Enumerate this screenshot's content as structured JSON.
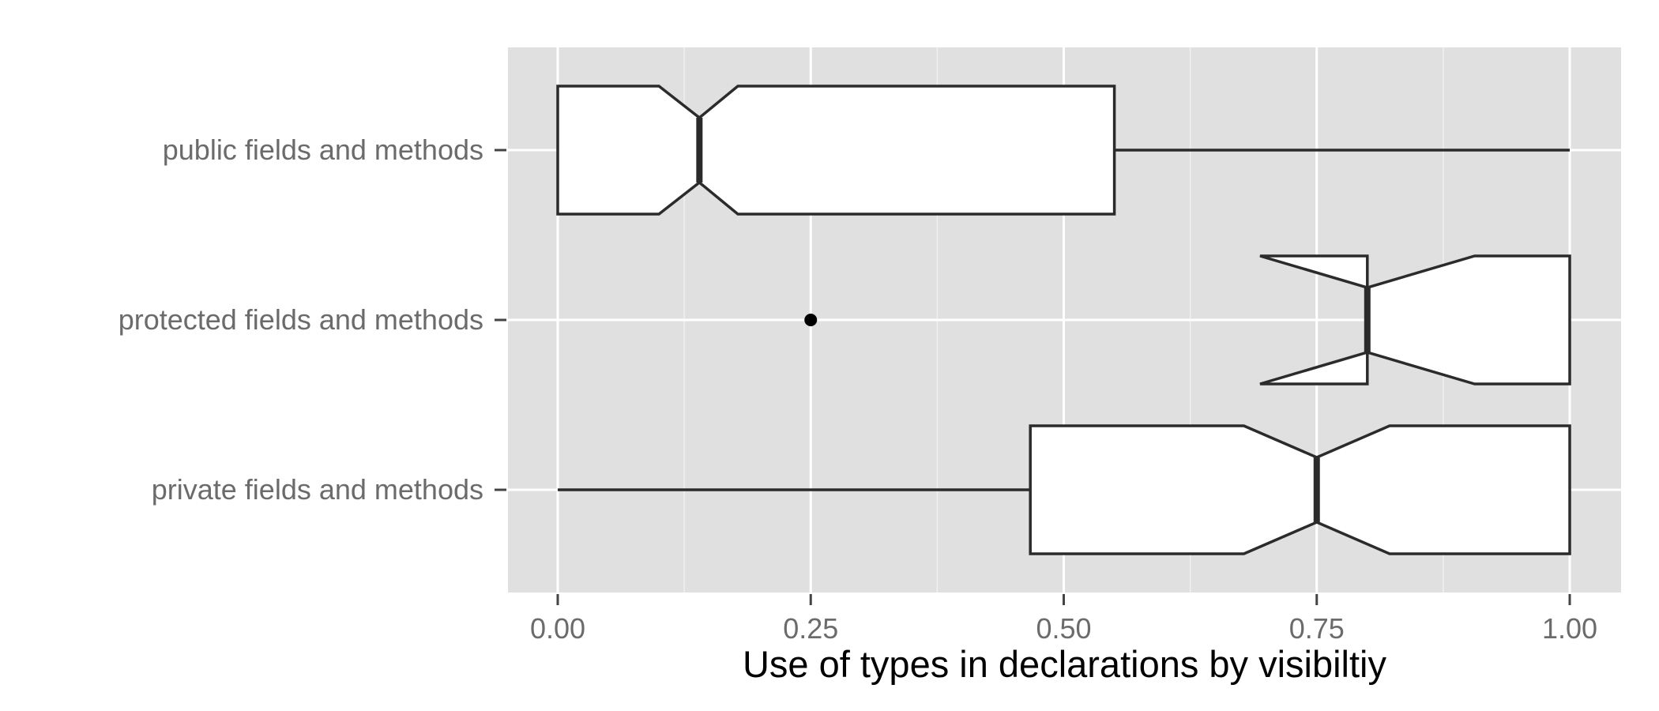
{
  "chart_data": {
    "type": "boxplot",
    "orientation": "horizontal",
    "notched": true,
    "xlabel": "Use of types in declarations by visibiltiy",
    "ylabel": "",
    "xlim": [
      -0.05,
      1.05
    ],
    "x_ticks": [
      0,
      0.25,
      0.5,
      0.75,
      1.0
    ],
    "x_tick_labels": [
      "0.00",
      "0.25",
      "0.50",
      "0.75",
      "1.00"
    ],
    "grid": true,
    "categories": [
      "public fields and methods",
      "protected fields and methods",
      "private fields and methods"
    ],
    "boxes": [
      {
        "category": "public fields and methods",
        "whisker_low": 0.0,
        "q1": 0.0,
        "median": 0.14,
        "q3": 0.55,
        "whisker_high": 1.0,
        "notch_low": 0.1,
        "notch_high": 0.178,
        "outliers": []
      },
      {
        "category": "protected fields and methods",
        "whisker_low": 0.8,
        "q1": 0.8,
        "median": 0.8,
        "q3": 1.0,
        "whisker_high": 1.0,
        "notch_low": 0.694,
        "notch_high": 0.906,
        "outliers": [
          0.25
        ]
      },
      {
        "category": "private fields and methods",
        "whisker_low": 0.0,
        "q1": 0.467,
        "median": 0.75,
        "q3": 1.0,
        "whisker_high": 1.0,
        "notch_low": 0.678,
        "notch_high": 0.822,
        "outliers": []
      }
    ],
    "colors": {
      "panel_background": "#e0e0e0",
      "grid_major": "#ffffff",
      "grid_minor": "#f0f0f0",
      "box_fill": "#ffffff",
      "box_line": "#2b2b2b",
      "outlier": "#000000",
      "tick_text": "#6b6b6b",
      "title_text": "#000000"
    }
  }
}
